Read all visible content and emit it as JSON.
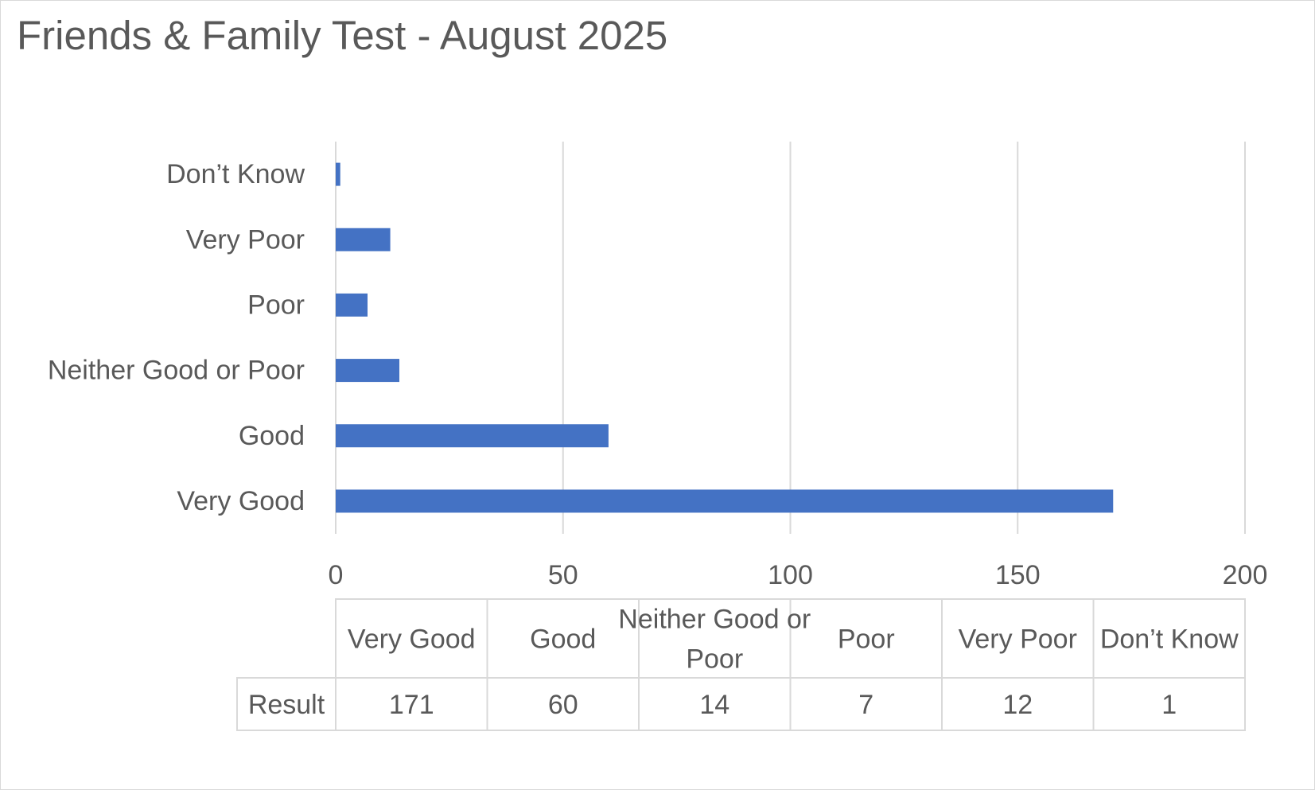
{
  "title": "Friends & Family Test - August 2025",
  "chart_data": {
    "type": "bar",
    "orientation": "horizontal",
    "title": "Friends & Family Test - August 2025",
    "categories": [
      "Very Good",
      "Good",
      "Neither Good or Poor",
      "Poor",
      "Very Poor",
      "Don’t Know"
    ],
    "series": [
      {
        "name": "Result",
        "values": [
          171,
          60,
          14,
          7,
          12,
          1
        ],
        "color": "#4472c4"
      }
    ],
    "xlim": [
      0,
      200
    ],
    "xticks": [
      0,
      50,
      100,
      150,
      200
    ],
    "xtick_labels": [
      "0",
      "50",
      "100",
      "150",
      "200"
    ],
    "grid": "vertical",
    "legend": "none",
    "data_table": {
      "row_label": "Result",
      "headers": [
        "Very Good",
        "Good",
        "Neither Good or Poor",
        "Poor",
        "Very Poor",
        "Don’t Know"
      ],
      "values": [
        "171",
        "60",
        "14",
        "7",
        "12",
        "1"
      ]
    }
  }
}
